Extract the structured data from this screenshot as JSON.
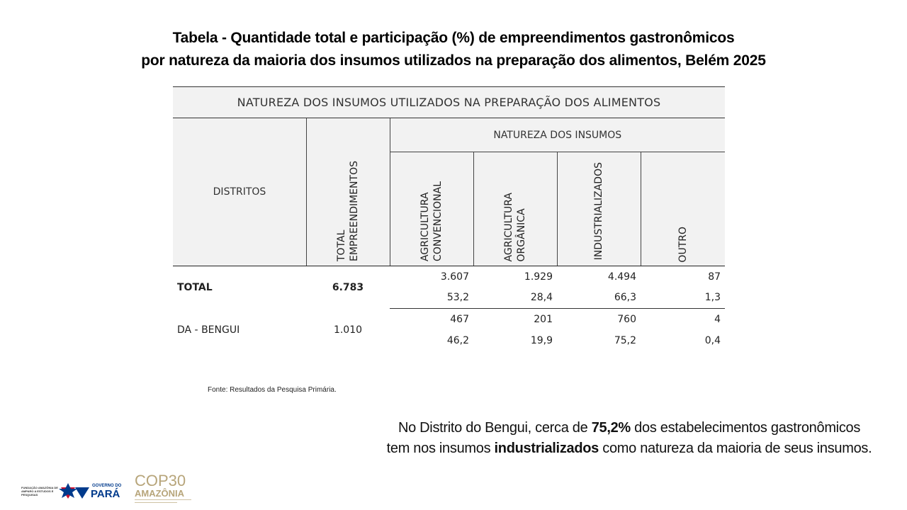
{
  "title": {
    "line1": "Tabela - Quantidade total e participação (%) de empreendimentos gastronômicos",
    "line2": "por natureza da maioria dos insumos utilizados na preparação dos alimentos, Belém 2025"
  },
  "table": {
    "top_header": "NATUREZA DOS INSUMOS UTILIZADOS NA PREPARAÇÃO DOS ALIMENTOS",
    "col_distritos": "DISTRITOS",
    "col_total_l1": "TOTAL",
    "col_total_l2": "EMPREENDIMENTOS",
    "group_header": "NATUREZA DOS INSUMOS",
    "cols": [
      {
        "l1": "AGRICULTURA",
        "l2": "CONVENCIONAL"
      },
      {
        "l1": "AGRICULTURA",
        "l2": "ORGÂNICA"
      },
      {
        "l1": "INDUSTRIALIZADOS",
        "l2": ""
      },
      {
        "l1": "OUTRO",
        "l2": ""
      }
    ],
    "rows": [
      {
        "label": "TOTAL",
        "total": "6.783",
        "counts": [
          "3.607",
          "1.929",
          "4.494",
          "87"
        ],
        "percents": [
          "53,2",
          "28,4",
          "66,3",
          "1,3"
        ]
      },
      {
        "label": "DA - BENGUI",
        "total": "1.010",
        "counts": [
          "467",
          "201",
          "760",
          "4"
        ],
        "percents": [
          "46,2",
          "19,9",
          "75,2",
          "0,4"
        ]
      }
    ]
  },
  "source": "Fonte: Resultados da Pesquisa Primária.",
  "note": {
    "l1_a": "No Distrito do Bengui, cerca de ",
    "l1_b": "75,2%",
    "l1_c": " dos estabelecimentos gastronômicos",
    "l2_a": "tem nos insumos ",
    "l2_b": "industrializados",
    "l2_c": " como natureza da maioria de seus insumos."
  },
  "logos": {
    "fapespa_text": "FUNDAÇÃO AMAZÔNIA DE AMPARO A ESTUDOS E PESQUISAS",
    "governo_do": "GOVERNO DO",
    "para": "PARÁ",
    "cop_l1": "COP30",
    "cop_l2": "AMAZÔNIA"
  }
}
